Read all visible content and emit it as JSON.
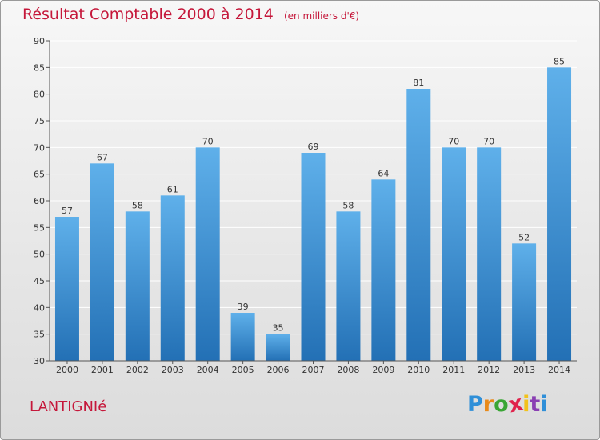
{
  "chart_data": {
    "type": "bar",
    "title": "Résultat Comptable 2000 à 2014",
    "subtitle": "(en milliers d'€)",
    "categories": [
      "2000",
      "2001",
      "2002",
      "2003",
      "2004",
      "2005",
      "2006",
      "2007",
      "2008",
      "2009",
      "2010",
      "2011",
      "2012",
      "2013",
      "2014"
    ],
    "values": [
      57,
      67,
      58,
      61,
      70,
      39,
      35,
      69,
      58,
      64,
      81,
      70,
      70,
      52,
      85
    ],
    "ylim": [
      30,
      90
    ],
    "yticks": [
      30,
      35,
      40,
      45,
      50,
      55,
      60,
      65,
      70,
      75,
      80,
      85,
      90
    ],
    "xlabel": "",
    "ylabel": "",
    "grid": true,
    "data_labels": true
  },
  "footer": {
    "commune": "LANTIGNIé",
    "logo_text": "Proxiti",
    "logo_colors": [
      "#2f8fd8",
      "#e98a1a",
      "#3aa635",
      "#e0224b",
      "#f2c21b",
      "#8a3fb3",
      "#2f8fd8"
    ]
  },
  "colors": {
    "title": "#c5173a",
    "bar_top": "#5fb0ea",
    "bar_bottom": "#2370b5",
    "grid": "#ffffff",
    "axis": "#555555"
  }
}
